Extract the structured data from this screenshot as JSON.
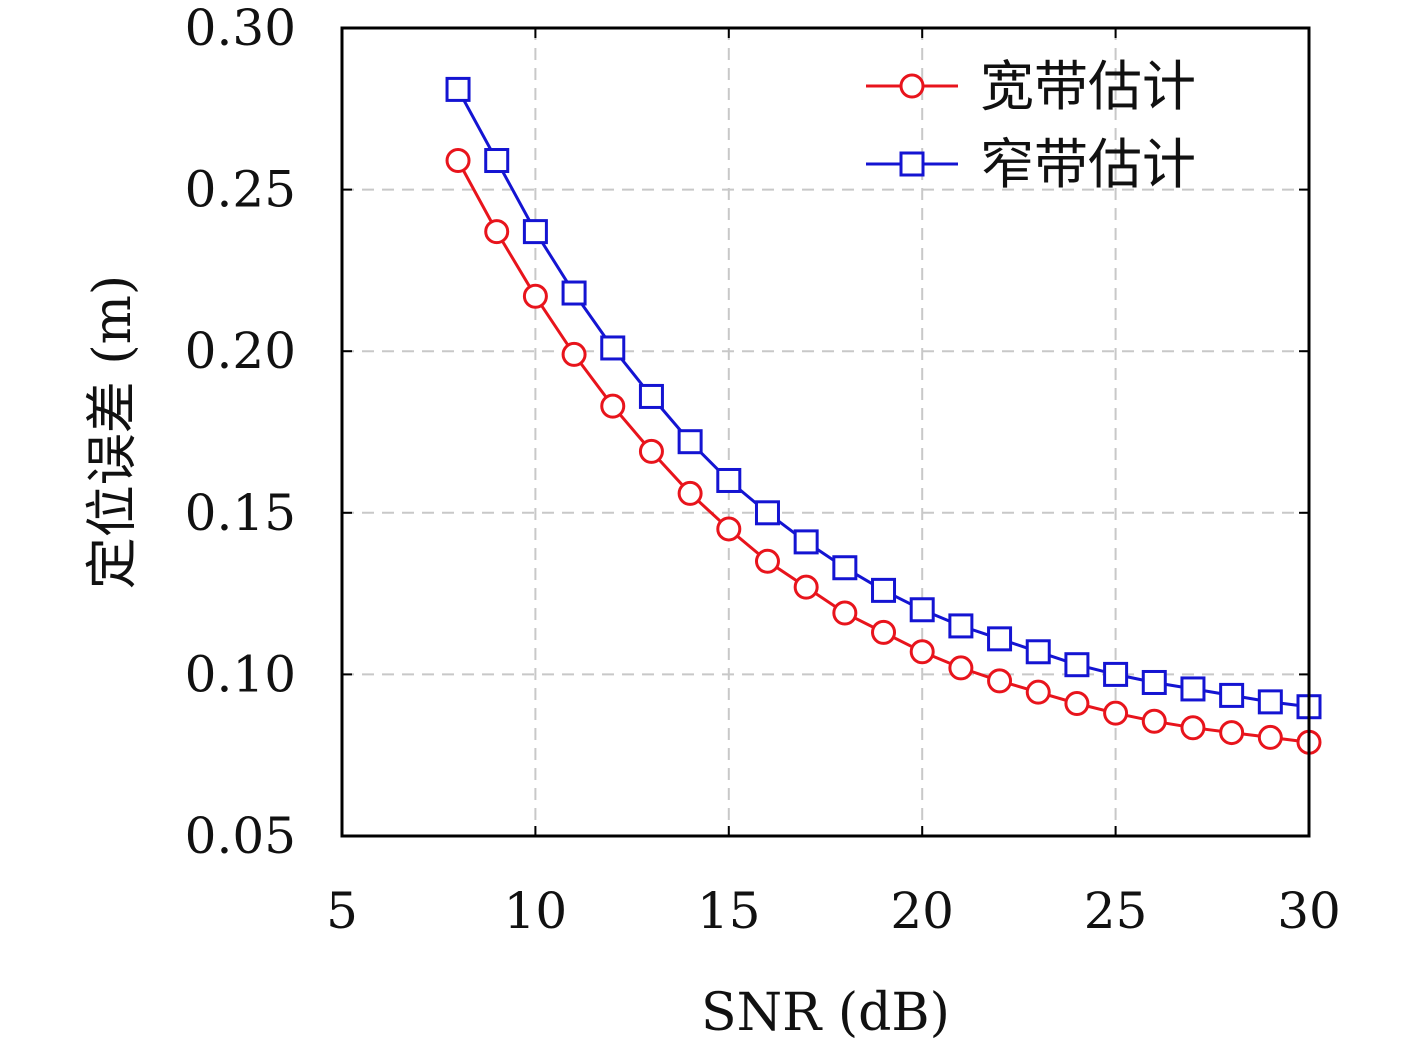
{
  "chart_data": {
    "type": "line",
    "xlabel": "SNR (dB)",
    "ylabel": "定位误差 (m)",
    "xlim": [
      5,
      30
    ],
    "ylim": [
      0.05,
      0.3
    ],
    "xticks": [
      5,
      10,
      15,
      20,
      25,
      30
    ],
    "xtick_labels": [
      "5",
      "10",
      "15",
      "20",
      "25",
      "30"
    ],
    "yticks": [
      0.05,
      0.1,
      0.15,
      0.2,
      0.25,
      0.3
    ],
    "ytick_labels": [
      "0.05",
      "0.10",
      "0.15",
      "0.20",
      "0.25",
      "0.30"
    ],
    "grid": true,
    "legend_position": "top-right",
    "x": [
      8,
      9,
      10,
      11,
      12,
      13,
      14,
      15,
      16,
      17,
      18,
      19,
      20,
      21,
      22,
      23,
      24,
      25,
      26,
      27,
      28,
      29,
      30
    ],
    "series": [
      {
        "name": "宽带估计",
        "color": "#e8141c",
        "marker": "circle",
        "values": [
          0.259,
          0.237,
          0.217,
          0.199,
          0.183,
          0.169,
          0.156,
          0.145,
          0.135,
          0.127,
          0.119,
          0.113,
          0.107,
          0.102,
          0.098,
          0.0945,
          0.091,
          0.088,
          0.0855,
          0.0835,
          0.082,
          0.0805,
          0.079
        ]
      },
      {
        "name": "窄带估计",
        "color": "#1414d2",
        "marker": "square",
        "values": [
          0.281,
          0.259,
          0.237,
          0.218,
          0.201,
          0.186,
          0.172,
          0.16,
          0.15,
          0.141,
          0.133,
          0.126,
          0.12,
          0.115,
          0.111,
          0.107,
          0.103,
          0.1,
          0.0975,
          0.0955,
          0.0935,
          0.0915,
          0.09
        ]
      }
    ]
  }
}
